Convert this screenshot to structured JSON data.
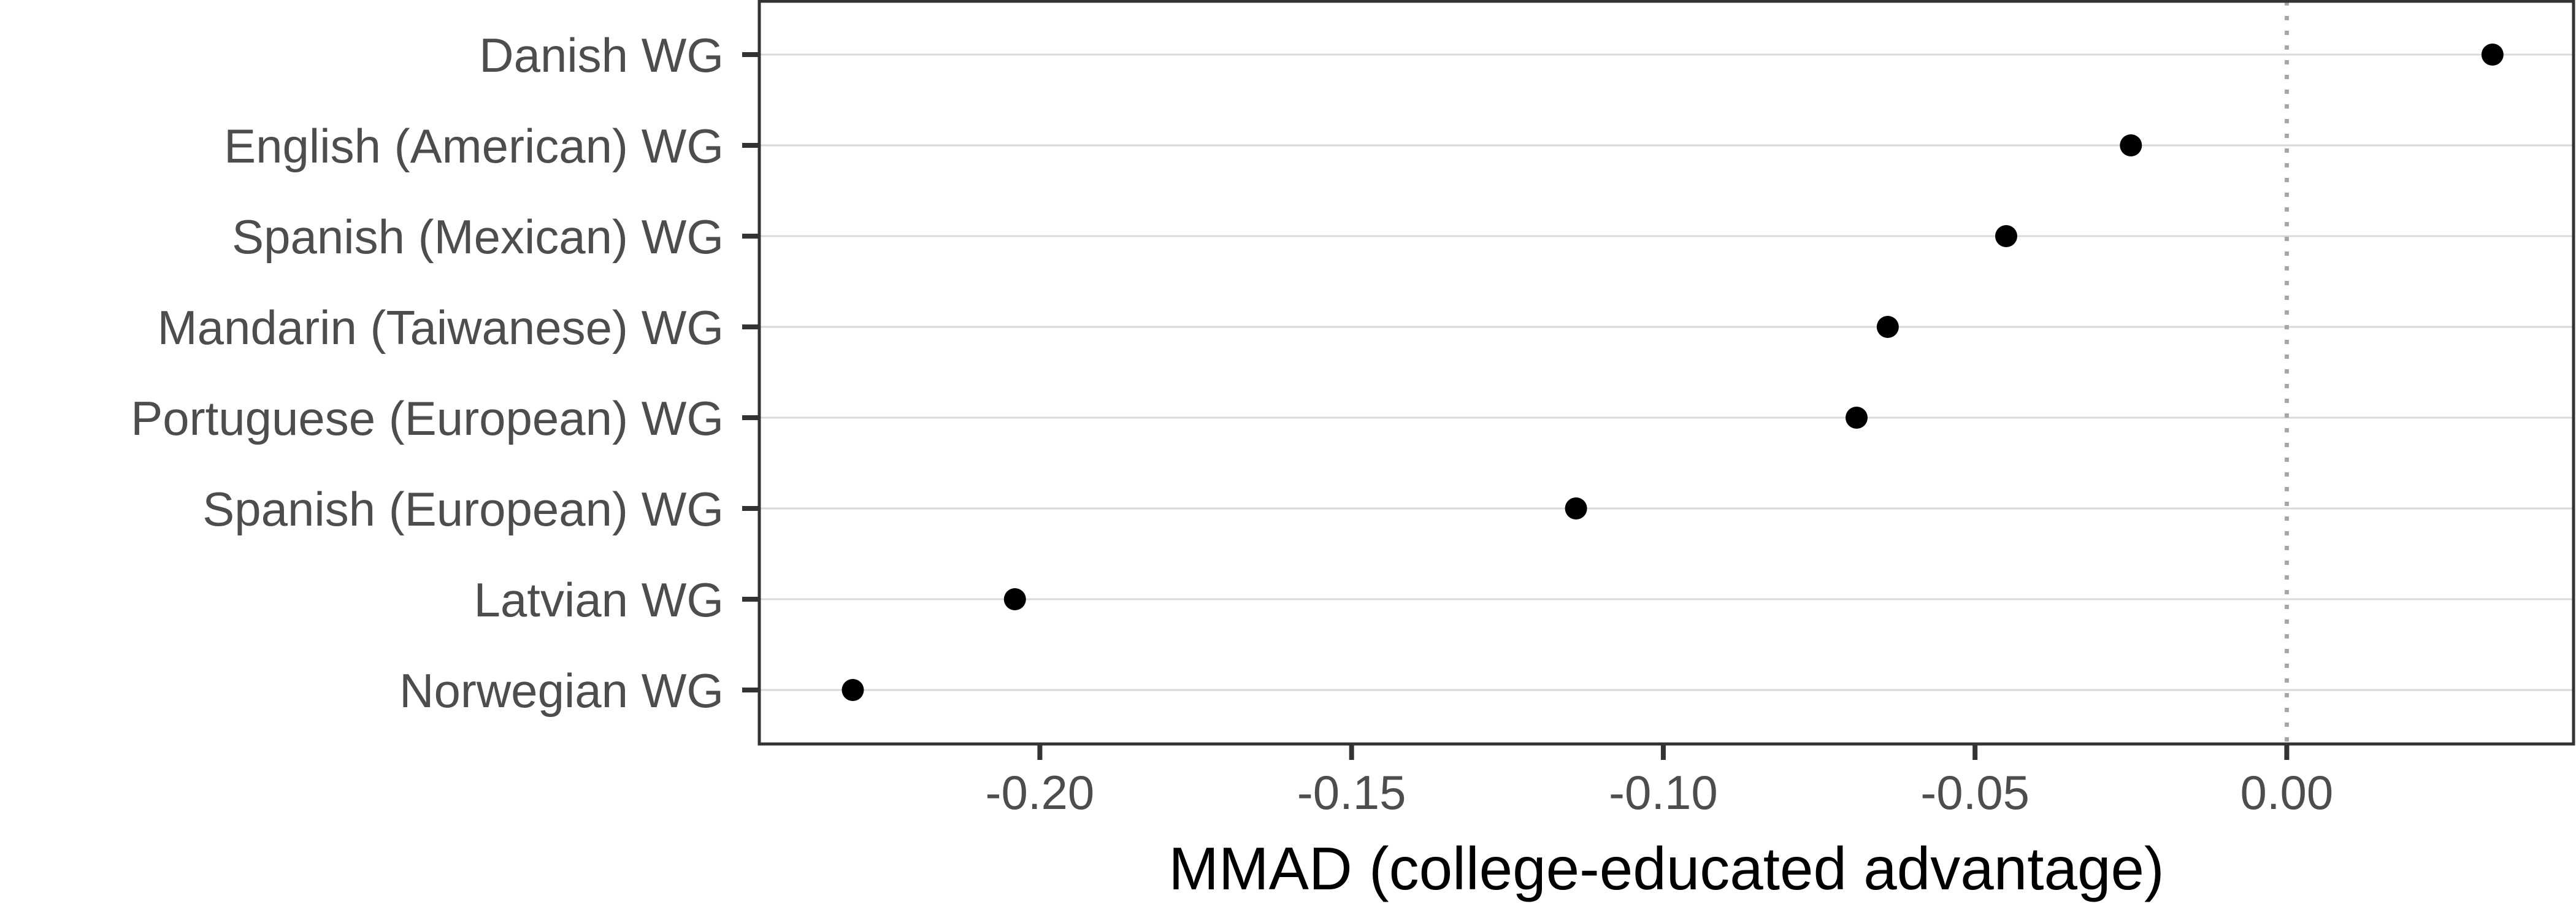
{
  "chart_data": {
    "type": "scatter",
    "title": "",
    "xlabel": "MMAD (college-educated advantage)",
    "ylabel": "",
    "xlim": [
      -0.245,
      0.046
    ],
    "x_ticks": [
      -0.2,
      -0.15,
      -0.1,
      -0.05,
      0.0
    ],
    "x_tick_labels": [
      "-0.20",
      "-0.15",
      "-0.10",
      "-0.05",
      "0.00"
    ],
    "reference_line": {
      "x": 0.0,
      "style": "dotted"
    },
    "grid": "horizontal-major",
    "legend": "none",
    "categories": [
      "Danish WG",
      "English (American) WG",
      "Spanish (Mexican) WG",
      "Mandarin (Taiwanese) WG",
      "Portuguese (European) WG",
      "Spanish (European) WG",
      "Latvian WG",
      "Norwegian WG"
    ],
    "values": [
      0.033,
      -0.025,
      -0.045,
      -0.064,
      -0.069,
      -0.114,
      -0.204,
      -0.23
    ],
    "colors": {
      "point": "#000000",
      "grid": "#d9d9d9",
      "reference_line": "#a6a6a6",
      "panel_border": "#333333",
      "text": "#4d4d4d"
    }
  }
}
